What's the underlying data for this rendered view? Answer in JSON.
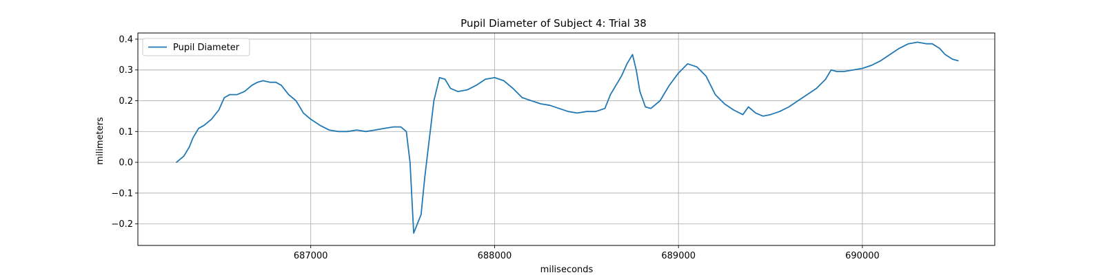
{
  "chart_data": {
    "type": "line",
    "title": "Pupil Diameter of Subject 4: Trial 38",
    "xlabel": "miliseconds",
    "ylabel": "milimeters",
    "xlim": [
      686060,
      690720
    ],
    "ylim": [
      -0.27,
      0.42
    ],
    "xticks": [
      687000,
      688000,
      689000,
      690000
    ],
    "xtick_labels": [
      "687000",
      "688000",
      "689000",
      "690000"
    ],
    "yticks": [
      -0.2,
      -0.1,
      0.0,
      0.1,
      0.2,
      0.3,
      0.4
    ],
    "ytick_labels": [
      "−0.2",
      "−0.1",
      "0.0",
      "0.1",
      "0.2",
      "0.3",
      "0.4"
    ],
    "grid": true,
    "legend_position": "upper-left",
    "series": [
      {
        "name": "Pupil Diameter",
        "color": "#1f77b4",
        "points": [
          [
            686270,
            0.0
          ],
          [
            686310,
            0.02
          ],
          [
            686340,
            0.05
          ],
          [
            686360,
            0.08
          ],
          [
            686390,
            0.11
          ],
          [
            686420,
            0.12
          ],
          [
            686460,
            0.14
          ],
          [
            686500,
            0.17
          ],
          [
            686530,
            0.21
          ],
          [
            686560,
            0.22
          ],
          [
            686600,
            0.22
          ],
          [
            686640,
            0.23
          ],
          [
            686680,
            0.25
          ],
          [
            686710,
            0.26
          ],
          [
            686740,
            0.265
          ],
          [
            686780,
            0.26
          ],
          [
            686810,
            0.26
          ],
          [
            686840,
            0.25
          ],
          [
            686880,
            0.22
          ],
          [
            686920,
            0.2
          ],
          [
            686960,
            0.16
          ],
          [
            687000,
            0.14
          ],
          [
            687050,
            0.12
          ],
          [
            687100,
            0.105
          ],
          [
            687150,
            0.1
          ],
          [
            687200,
            0.1
          ],
          [
            687250,
            0.105
          ],
          [
            687300,
            0.1
          ],
          [
            687350,
            0.105
          ],
          [
            687400,
            0.11
          ],
          [
            687450,
            0.115
          ],
          [
            687490,
            0.115
          ],
          [
            687520,
            0.1
          ],
          [
            687540,
            0.0
          ],
          [
            687560,
            -0.23
          ],
          [
            687580,
            -0.2
          ],
          [
            687600,
            -0.17
          ],
          [
            687620,
            -0.05
          ],
          [
            687640,
            0.05
          ],
          [
            687670,
            0.2
          ],
          [
            687700,
            0.275
          ],
          [
            687730,
            0.27
          ],
          [
            687760,
            0.24
          ],
          [
            687800,
            0.23
          ],
          [
            687850,
            0.235
          ],
          [
            687900,
            0.25
          ],
          [
            687950,
            0.27
          ],
          [
            688000,
            0.275
          ],
          [
            688050,
            0.265
          ],
          [
            688100,
            0.24
          ],
          [
            688150,
            0.21
          ],
          [
            688200,
            0.2
          ],
          [
            688250,
            0.19
          ],
          [
            688300,
            0.185
          ],
          [
            688350,
            0.175
          ],
          [
            688400,
            0.165
          ],
          [
            688450,
            0.16
          ],
          [
            688500,
            0.165
          ],
          [
            688550,
            0.165
          ],
          [
            688600,
            0.175
          ],
          [
            688630,
            0.22
          ],
          [
            688660,
            0.25
          ],
          [
            688690,
            0.28
          ],
          [
            688720,
            0.32
          ],
          [
            688750,
            0.35
          ],
          [
            688770,
            0.3
          ],
          [
            688790,
            0.23
          ],
          [
            688820,
            0.18
          ],
          [
            688850,
            0.175
          ],
          [
            688900,
            0.2
          ],
          [
            688950,
            0.25
          ],
          [
            689000,
            0.29
          ],
          [
            689050,
            0.32
          ],
          [
            689100,
            0.31
          ],
          [
            689150,
            0.28
          ],
          [
            689200,
            0.22
          ],
          [
            689250,
            0.19
          ],
          [
            689300,
            0.17
          ],
          [
            689350,
            0.155
          ],
          [
            689380,
            0.18
          ],
          [
            689420,
            0.16
          ],
          [
            689460,
            0.15
          ],
          [
            689500,
            0.155
          ],
          [
            689550,
            0.165
          ],
          [
            689600,
            0.18
          ],
          [
            689650,
            0.2
          ],
          [
            689700,
            0.22
          ],
          [
            689750,
            0.24
          ],
          [
            689800,
            0.27
          ],
          [
            689830,
            0.3
          ],
          [
            689860,
            0.295
          ],
          [
            689900,
            0.295
          ],
          [
            689950,
            0.3
          ],
          [
            690000,
            0.305
          ],
          [
            690050,
            0.315
          ],
          [
            690100,
            0.33
          ],
          [
            690150,
            0.35
          ],
          [
            690200,
            0.37
          ],
          [
            690250,
            0.385
          ],
          [
            690300,
            0.39
          ],
          [
            690350,
            0.385
          ],
          [
            690380,
            0.385
          ],
          [
            690420,
            0.37
          ],
          [
            690450,
            0.35
          ],
          [
            690490,
            0.335
          ],
          [
            690520,
            0.33
          ]
        ]
      }
    ]
  }
}
